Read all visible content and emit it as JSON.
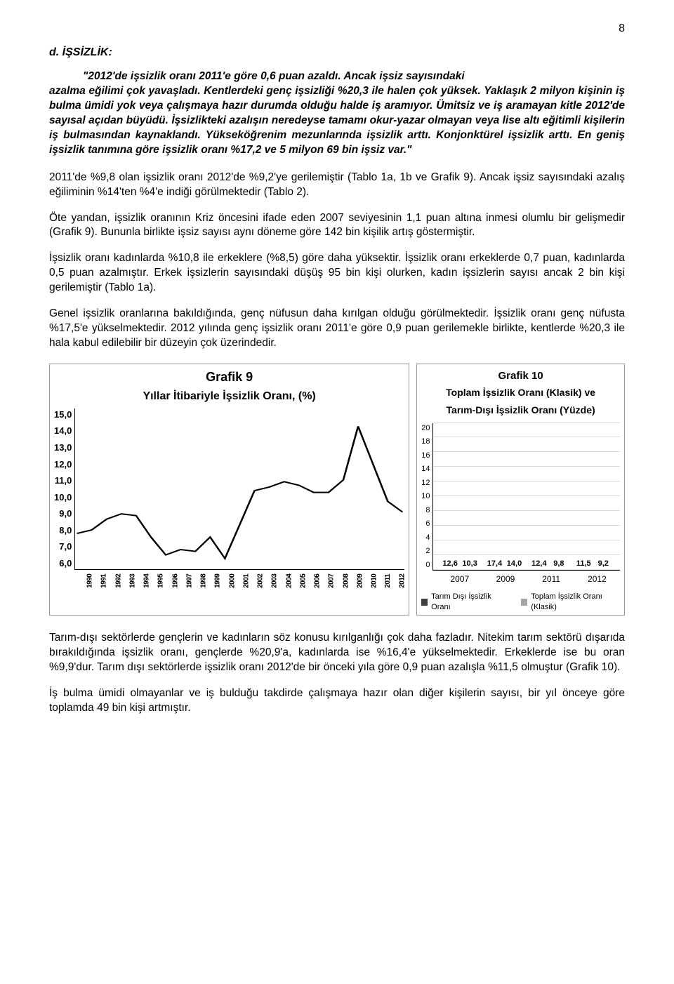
{
  "page_number": "8",
  "heading": "d. İŞSİZLİK:",
  "quote": {
    "line1": "\"2012'de işsizlik oranı 2011'e göre 0,6 puan azaldı. Ancak işsiz sayısındaki",
    "rest": "azalma eğilimi çok yavaşladı. Kentlerdeki genç işsizliği %20,3 ile halen çok yüksek. Yaklaşık 2 milyon kişinin iş bulma ümidi yok veya çalışmaya hazır durumda olduğu halde iş aramıyor. Ümitsiz ve iş aramayan kitle 2012'de sayısal açıdan büyüdü. İşsizlikteki azalışın neredeyse tamamı okur-yazar olmayan veya lise altı eğitimli kişilerin iş bulmasından kaynaklandı. Yükseköğrenim mezunlarında işsizlik arttı. Konjonktürel işsizlik arttı. En geniş işsizlik tanımına göre işsizlik oranı %17,2 ve 5 milyon 69 bin işsiz var.\""
  },
  "paragraphs": {
    "p1": "2011'de %9,8 olan işsizlik oranı 2012'de %9,2'ye gerilemiştir (Tablo 1a, 1b ve Grafik 9). Ancak işsiz sayısındaki azalış eğiliminin %14'ten %4'e indiği görülmektedir (Tablo 2).",
    "p2": "Öte yandan, işsizlik oranının Kriz öncesini ifade eden 2007 seviyesinin 1,1 puan altına inmesi olumlu bir gelişmedir (Grafik 9). Bununla birlikte işsiz sayısı aynı döneme göre 142 bin kişilik artış göstermiştir.",
    "p3": "İşsizlik oranı kadınlarda %10,8 ile erkeklere (%8,5) göre daha yüksektir. İşsizlik oranı erkeklerde 0,7 puan, kadınlarda 0,5 puan azalmıştır. Erkek işsizlerin sayısındaki düşüş 95 bin kişi olurken, kadın işsizlerin sayısı ancak 2 bin kişi gerilemiştir (Tablo 1a).",
    "p4": "Genel işsizlik oranlarına bakıldığında, genç nüfusun daha kırılgan olduğu görülmektedir. İşsizlik oranı genç nüfusta %17,5'e yükselmektedir. 2012 yılında genç işsizlik oranı 2011'e göre 0,9 puan gerilemekle birlikte, kentlerde %20,3 ile hala kabul edilebilir bir düzeyin çok üzerindedir.",
    "p5": "Tarım-dışı sektörlerde gençlerin ve kadınların söz konusu kırılganlığı çok daha fazladır. Nitekim tarım sektörü dışarıda bırakıldığında işsizlik oranı, gençlerde %20,9'a, kadınlarda ise %16,4'e yükselmektedir. Erkeklerde ise bu oran %9,9'dur. Tarım dışı sektörlerde işsizlik oranı 2012'de bir önceki yıla göre 0,9 puan azalışla %11,5 olmuştur (Grafik 10).",
    "p6": "İş bulma ümidi olmayanlar ve iş bulduğu takdirde çalışmaya hazır olan diğer kişilerin sayısı, bir yıl önceye göre toplamda 49 bin kişi artmıştır."
  },
  "chart9": {
    "type": "line",
    "title": "Grafik 9",
    "subtitle": "Yıllar İtibariyle İşsizlik Oranı, (%)",
    "ylim": [
      6.0,
      15.0
    ],
    "yticks": [
      "15,0",
      "14,0",
      "13,0",
      "12,0",
      "11,0",
      "10,0",
      "9,0",
      "8,0",
      "7,0",
      "6,0"
    ],
    "xlabels": [
      "1990",
      "1991",
      "1992",
      "1993",
      "1994",
      "1995",
      "1996",
      "1997",
      "1998",
      "1999",
      "2000",
      "2001",
      "2002",
      "2003",
      "2004",
      "2005",
      "2006",
      "2007",
      "2008",
      "2009",
      "2010",
      "2011",
      "2012"
    ],
    "values": [
      8.0,
      8.2,
      8.8,
      9.1,
      9.0,
      7.8,
      6.8,
      7.1,
      7.0,
      7.8,
      6.6,
      8.5,
      10.4,
      10.6,
      10.9,
      10.7,
      10.3,
      10.3,
      11.0,
      14.0,
      11.9,
      9.8,
      9.2
    ],
    "line_color": "#000000",
    "line_width": 2,
    "background_color": "#ffffff"
  },
  "chart10": {
    "type": "bar",
    "title": "Grafik 10",
    "subtitle_line1": "Toplam İşsizlik Oranı (Klasik) ve",
    "subtitle_line2": "Tarım-Dışı İşsizlik Oranı (Yüzde)",
    "ylim": [
      0,
      20
    ],
    "yticks": [
      "20",
      "18",
      "16",
      "14",
      "12",
      "10",
      "8",
      "6",
      "4",
      "2",
      "0"
    ],
    "categories": [
      "2007",
      "2009",
      "2011",
      "2012"
    ],
    "series": [
      {
        "name": "Tarım Dışı İşsizlik Oranı",
        "color": "#404040",
        "values": [
          12.6,
          17.4,
          12.4,
          11.5
        ]
      },
      {
        "name": "Toplam İşsizlik Oranı (Klasik)",
        "color": "#a6a6a6",
        "values": [
          10.3,
          14.0,
          9.8,
          9.2
        ]
      }
    ],
    "value_labels": [
      [
        "12,6",
        "10,3"
      ],
      [
        "17,4",
        "14,0"
      ],
      [
        "12,4",
        "9,8"
      ],
      [
        "11,5",
        "9,2"
      ]
    ],
    "grid_color": "#d9d9d9",
    "background_color": "#ffffff"
  }
}
